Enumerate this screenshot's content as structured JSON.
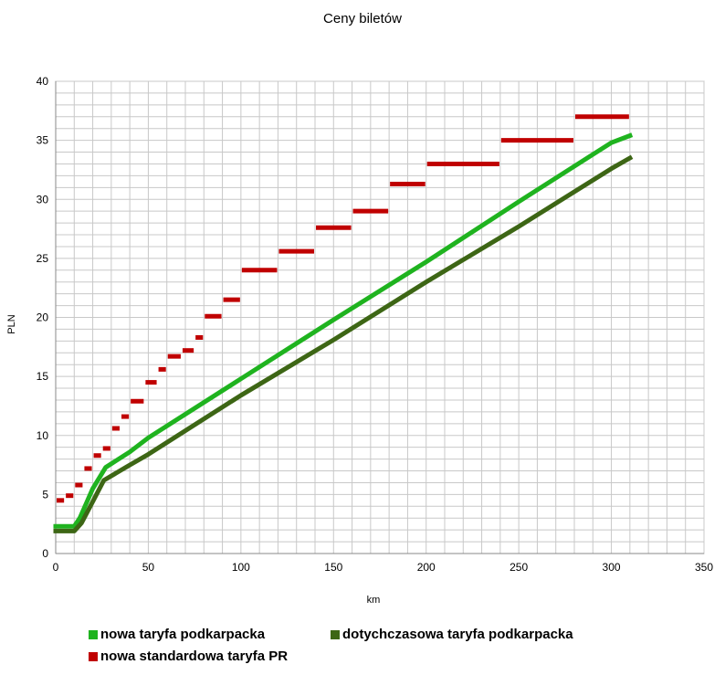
{
  "chart_data": {
    "type": "line",
    "title": "Ceny biletów",
    "xlabel": "km",
    "ylabel": "PLN",
    "xlim": [
      0,
      350
    ],
    "ylim": [
      0,
      40
    ],
    "x_ticks": [
      0,
      50,
      100,
      150,
      200,
      250,
      300,
      350
    ],
    "y_ticks": [
      0,
      5,
      10,
      15,
      20,
      25,
      30,
      35,
      40
    ],
    "grid": true,
    "legend_position": "bottom",
    "series": [
      {
        "name": "nowa taryfa podkarpacka",
        "style": "line",
        "color": "#1fb31f",
        "points": [
          [
            0,
            2.3
          ],
          [
            10,
            2.3
          ],
          [
            13,
            3.0
          ],
          [
            20,
            5.5
          ],
          [
            27,
            7.3
          ],
          [
            40,
            8.6
          ],
          [
            50,
            9.8
          ],
          [
            100,
            14.8
          ],
          [
            150,
            19.8
          ],
          [
            200,
            24.7
          ],
          [
            250,
            29.8
          ],
          [
            300,
            34.8
          ],
          [
            310,
            35.4
          ]
        ]
      },
      {
        "name": "dotychczasowa taryfa podkarpacka",
        "style": "line",
        "color": "#3d6615",
        "points": [
          [
            0,
            1.9
          ],
          [
            10,
            1.9
          ],
          [
            14,
            2.6
          ],
          [
            20,
            4.4
          ],
          [
            26,
            6.2
          ],
          [
            40,
            7.5
          ],
          [
            50,
            8.4
          ],
          [
            100,
            13.4
          ],
          [
            150,
            18.1
          ],
          [
            200,
            23.0
          ],
          [
            250,
            27.7
          ],
          [
            300,
            32.6
          ],
          [
            310,
            33.5
          ]
        ]
      },
      {
        "name": "nowa standardowa taryfa PR",
        "style": "step",
        "color": "#c00000",
        "segments": [
          [
            0,
            5,
            4.5
          ],
          [
            5,
            10,
            4.9
          ],
          [
            10,
            15,
            5.8
          ],
          [
            15,
            20,
            7.2
          ],
          [
            20,
            25,
            8.3
          ],
          [
            25,
            30,
            8.9
          ],
          [
            30,
            35,
            10.6
          ],
          [
            35,
            40,
            11.6
          ],
          [
            40,
            48,
            12.9
          ],
          [
            48,
            55,
            14.5
          ],
          [
            55,
            60,
            15.6
          ],
          [
            60,
            68,
            16.7
          ],
          [
            68,
            75,
            17.2
          ],
          [
            75,
            80,
            18.3
          ],
          [
            80,
            90,
            20.1
          ],
          [
            90,
            100,
            21.5
          ],
          [
            100,
            120,
            24.0
          ],
          [
            120,
            140,
            25.6
          ],
          [
            140,
            160,
            27.6
          ],
          [
            160,
            180,
            29.0
          ],
          [
            180,
            200,
            31.3
          ],
          [
            200,
            240,
            33.0
          ],
          [
            240,
            280,
            35.0
          ],
          [
            280,
            310,
            37.0
          ]
        ]
      }
    ]
  }
}
